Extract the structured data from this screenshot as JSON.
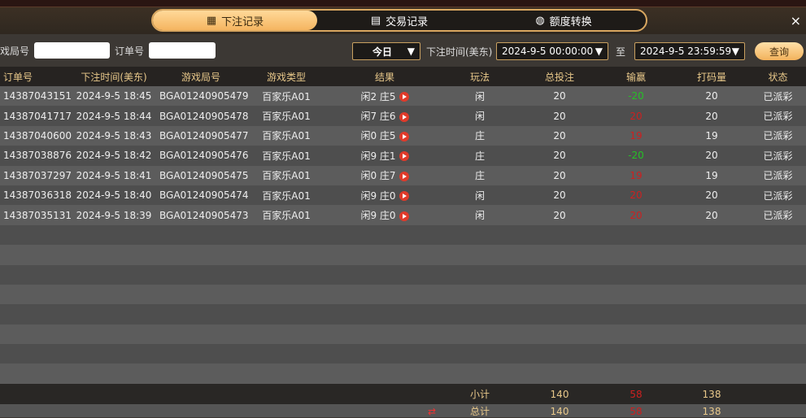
{
  "tabs": [
    {
      "label": "下注记录",
      "icon": "calendar-icon",
      "active": true
    },
    {
      "label": "交易记录",
      "icon": "clipboard-icon"
    },
    {
      "label": "额度转换",
      "icon": "coins-icon"
    }
  ],
  "close_label": "×",
  "filters": {
    "round_label": "戏局号",
    "round_value": "",
    "order_label": "订单号",
    "order_value": "",
    "period": "今日",
    "time_label": "下注时间(美东)",
    "start": "2024-9-5 00:00:00",
    "to_label": "至",
    "end": "2024-9-5 23:59:59",
    "query_label": "查询"
  },
  "columns": [
    "订单号",
    "下注时间(美东)",
    "游戏局号",
    "游戏类型",
    "结果",
    "玩法",
    "总投注",
    "输赢",
    "打码量",
    "状态"
  ],
  "rows": [
    [
      "14387043151",
      "2024-9-5 18:45",
      "BGA01240905479",
      "百家乐A01",
      "闲2 庄5",
      "闲",
      "20",
      "-20",
      "20",
      "已派彩"
    ],
    [
      "14387041717",
      "2024-9-5 18:44",
      "BGA01240905478",
      "百家乐A01",
      "闲7 庄6",
      "闲",
      "20",
      "20",
      "20",
      "已派彩"
    ],
    [
      "14387040600",
      "2024-9-5 18:43",
      "BGA01240905477",
      "百家乐A01",
      "闲0 庄5",
      "庄",
      "20",
      "19",
      "19",
      "已派彩"
    ],
    [
      "14387038876",
      "2024-9-5 18:42",
      "BGA01240905476",
      "百家乐A01",
      "闲9 庄1",
      "庄",
      "20",
      "-20",
      "20",
      "已派彩"
    ],
    [
      "14387037297",
      "2024-9-5 18:41",
      "BGA01240905475",
      "百家乐A01",
      "闲0 庄7",
      "庄",
      "20",
      "19",
      "19",
      "已派彩"
    ],
    [
      "14387036318",
      "2024-9-5 18:40",
      "BGA01240905474",
      "百家乐A01",
      "闲9 庄0",
      "闲",
      "20",
      "20",
      "20",
      "已派彩"
    ],
    [
      "14387035131",
      "2024-9-5 18:39",
      "BGA01240905473",
      "百家乐A01",
      "闲9 庄0",
      "闲",
      "20",
      "20",
      "20",
      "已派彩"
    ]
  ],
  "subtotal": {
    "label": "小计",
    "bet": "140",
    "win": "58",
    "turnover": "138"
  },
  "total": {
    "label": "总计",
    "bet": "140",
    "win": "58",
    "turnover": "138"
  },
  "colors": {
    "accent": "#f5b560",
    "win_positive": "#cc2020",
    "win_negative": "#25c025"
  }
}
